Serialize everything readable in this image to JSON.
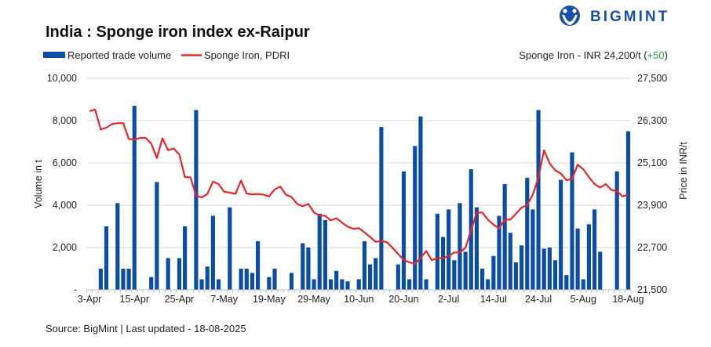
{
  "brand": {
    "name": "BIGMINT",
    "color": "#1a4fa8"
  },
  "title": "India : Sponge iron index ex-Raipur",
  "price_note": {
    "prefix": "Sponge Iron - INR 24,200/t (",
    "change": "+50",
    "suffix": ")",
    "change_color": "#2e9e4a"
  },
  "source": "Source: BigMint | Last updated - 18-08-2025",
  "chart_data": {
    "type": "bar+line",
    "title": "India : Sponge iron index ex-Raipur",
    "xlabel": "",
    "ylabel": "Volume in t",
    "y2label": "Price in INR/t",
    "ylim": [
      0,
      10000
    ],
    "y2lim": [
      21500,
      27500
    ],
    "yticks": [
      "-",
      "2,000",
      "4,000",
      "6,000",
      "8,000",
      "10,000"
    ],
    "y2ticks": [
      "21,500",
      "22,700",
      "23,900",
      "25,100",
      "26,300",
      "27,500"
    ],
    "grid": true,
    "legend_position": "top-left",
    "x_tick_labels": [
      "3-Apr",
      "15-Apr",
      "25-Apr",
      "7-May",
      "19-May",
      "29-May",
      "10-Jun",
      "20-Jun",
      "2-Jul",
      "14-Jul",
      "24-Jul",
      "5-Aug",
      "18-Aug"
    ],
    "x_tick_label_every": 8,
    "series": [
      {
        "name": "Reported trade volume",
        "type": "bar",
        "axis": "left",
        "color": "#0a4da2",
        "values": [
          0,
          0,
          1000,
          3000,
          0,
          4100,
          1000,
          1000,
          8700,
          0,
          0,
          600,
          5100,
          0,
          1500,
          0,
          1500,
          3000,
          0,
          8500,
          500,
          1100,
          3500,
          500,
          0,
          3900,
          0,
          1000,
          1000,
          800,
          2300,
          0,
          600,
          1000,
          0,
          0,
          800,
          0,
          2200,
          2000,
          500,
          3600,
          3300,
          500,
          900,
          500,
          400,
          0,
          500,
          2300,
          1200,
          1500,
          7700,
          0,
          0,
          1200,
          5600,
          500,
          6800,
          8200,
          500,
          0,
          3600,
          2500,
          3800,
          1400,
          4100,
          1800,
          5700,
          3900,
          1000,
          500,
          1600,
          3500,
          5000,
          2700,
          1300,
          2100,
          5300,
          3800,
          8500,
          1950,
          2000,
          1400,
          5200,
          700,
          6500,
          2900,
          500,
          3100,
          3800,
          1800,
          0,
          0,
          5600,
          0,
          7500
        ]
      },
      {
        "name": "Sponge Iron, PDRI",
        "type": "line",
        "axis": "right",
        "color": "#e8262a",
        "values": [
          26570,
          26610,
          26050,
          26100,
          26200,
          26230,
          26230,
          25780,
          25760,
          25810,
          25810,
          25650,
          25240,
          25800,
          25460,
          25510,
          25340,
          24700,
          24690,
          24170,
          24120,
          24220,
          24570,
          24500,
          24280,
          24260,
          24220,
          24600,
          24230,
          24210,
          24220,
          24200,
          24150,
          24350,
          24430,
          24200,
          24130,
          23940,
          23870,
          23940,
          23690,
          23610,
          23600,
          23470,
          23530,
          23410,
          23290,
          23230,
          23250,
          23130,
          23000,
          22860,
          22890,
          22850,
          22690,
          22520,
          22350,
          22280,
          22240,
          22400,
          22600,
          22340,
          22400,
          22400,
          22460,
          22560,
          22560,
          22690,
          23200,
          23690,
          23690,
          23490,
          23350,
          23240,
          23490,
          23490,
          23660,
          23830,
          23910,
          24200,
          24690,
          25460,
          25090,
          24890,
          24800,
          24610,
          24650,
          25050,
          24920,
          24700,
          24500,
          24400,
          24500,
          24330,
          24300,
          24150,
          24200
        ]
      }
    ]
  }
}
